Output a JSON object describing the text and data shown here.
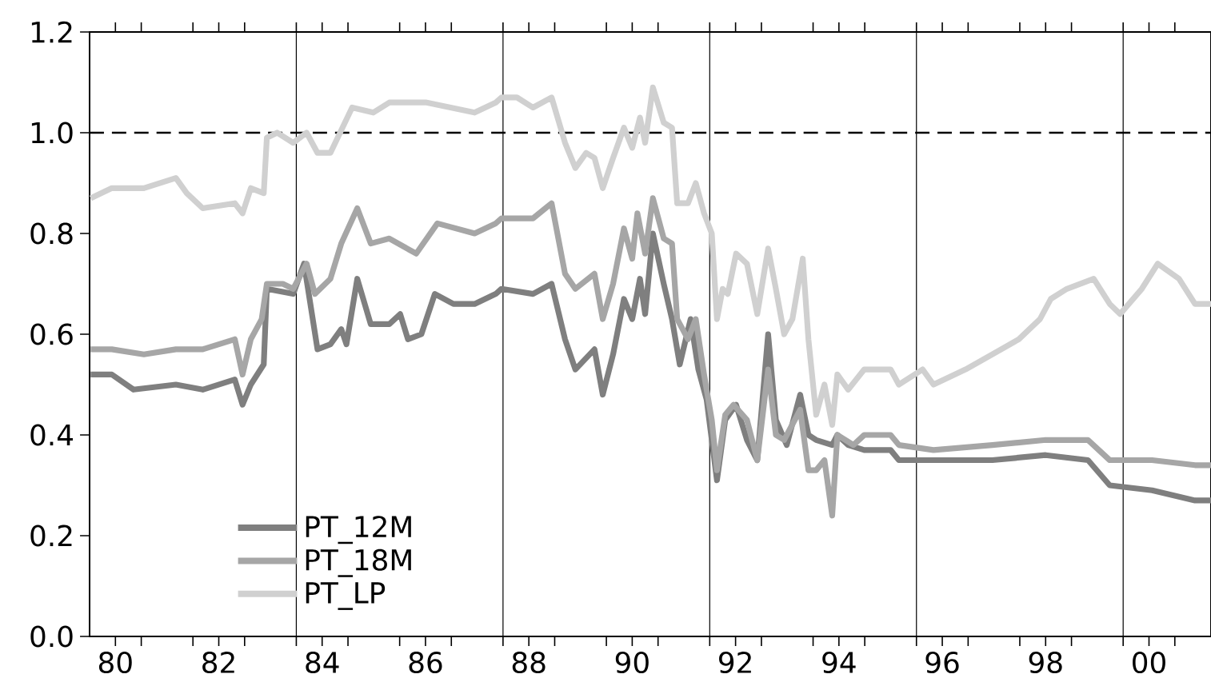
{
  "chart_data": {
    "type": "line",
    "xlim": [
      1979.5,
      2001.2
    ],
    "ylim": [
      0,
      1.2
    ],
    "xticks": [
      {
        "value": 1980,
        "label": "80"
      },
      {
        "value": 1980.5,
        "label": null
      },
      {
        "value": 1981.5,
        "label": null
      },
      {
        "value": 1982,
        "label": "82"
      },
      {
        "value": 1982.5,
        "label": null
      },
      {
        "value": 1983.5,
        "label": null
      },
      {
        "value": 1984,
        "label": "84"
      },
      {
        "value": 1984.5,
        "label": null
      },
      {
        "value": 1985.5,
        "label": null
      },
      {
        "value": 1986,
        "label": "86"
      },
      {
        "value": 1986.5,
        "label": null
      },
      {
        "value": 1987.5,
        "label": null
      },
      {
        "value": 1988,
        "label": "88"
      },
      {
        "value": 1988.5,
        "label": null
      },
      {
        "value": 1989.5,
        "label": null
      },
      {
        "value": 1990,
        "label": "90"
      },
      {
        "value": 1990.5,
        "label": null
      },
      {
        "value": 1991.5,
        "label": null
      },
      {
        "value": 1992,
        "label": "92"
      },
      {
        "value": 1992.5,
        "label": null
      },
      {
        "value": 1993.5,
        "label": null
      },
      {
        "value": 1994,
        "label": "94"
      },
      {
        "value": 1994.5,
        "label": null
      },
      {
        "value": 1995.5,
        "label": null
      },
      {
        "value": 1996,
        "label": "96"
      },
      {
        "value": 1996.5,
        "label": null
      },
      {
        "value": 1997.5,
        "label": null
      },
      {
        "value": 1998,
        "label": "98"
      },
      {
        "value": 1998.5,
        "label": null
      },
      {
        "value": 1999.5,
        "label": null
      },
      {
        "value": 2000,
        "label": "00"
      },
      {
        "value": 2000.5,
        "label": null
      }
    ],
    "yticks": [
      {
        "value": 0,
        "label": "0.0"
      },
      {
        "value": 0.2,
        "label": "0.2"
      },
      {
        "value": 0.4,
        "label": "0.4"
      },
      {
        "value": 0.6,
        "label": "0.6"
      },
      {
        "value": 0.8,
        "label": "0.8"
      },
      {
        "value": 1.0,
        "label": "1.0"
      },
      {
        "value": 1.2,
        "label": "1.2"
      }
    ],
    "legend": "bottom left",
    "marker": "none",
    "line_style": "solid",
    "ref_lines": [
      {
        "axis": "y",
        "value": 1.0,
        "color": "#000000",
        "line_style": "dashed"
      },
      {
        "axis": "x",
        "value": 1983.5,
        "color": "#000000",
        "line_style": "solid"
      },
      {
        "axis": "x",
        "value": 1987.5,
        "color": "#000000",
        "line_style": "solid"
      },
      {
        "axis": "x",
        "value": 1991.5,
        "color": "#000000",
        "line_style": "solid"
      },
      {
        "axis": "x",
        "value": 1995.5,
        "color": "#000000",
        "line_style": "solid"
      },
      {
        "axis": "x",
        "value": 1999.5,
        "color": "#000000",
        "line_style": "solid"
      }
    ],
    "series": [
      {
        "name": "PT_12M",
        "color": "#7f7f7f",
        "x": [
          1979.52,
          1979.93,
          1980.35,
          1981.17,
          1981.69,
          1982.31,
          1982.46,
          1982.62,
          1982.87,
          1982.93,
          1983.44,
          1983.65,
          1983.91,
          1984.16,
          1984.37,
          1984.47,
          1984.68,
          1984.94,
          1985.3,
          1985.51,
          1985.66,
          1985.92,
          1986.18,
          1986.54,
          1986.95,
          1987.36,
          1987.47,
          1988.08,
          1988.44,
          1988.7,
          1988.9,
          1989.27,
          1989.43,
          1989.63,
          1989.84,
          1990.0,
          1990.15,
          1990.25,
          1990.4,
          1990.61,
          1990.77,
          1990.92,
          1991.13,
          1991.28,
          1991.44,
          1991.64,
          1991.8,
          1992.01,
          1992.22,
          1992.42,
          1992.63,
          1992.78,
          1992.99,
          1993.25,
          1993.41,
          1993.56,
          1993.87,
          1993.97,
          1994.18,
          1994.49,
          1995.0,
          1995.16,
          1995.83,
          1996.97,
          1998.0,
          1998.82,
          1999.24,
          2000.06,
          2000.89,
          2001.2
        ],
        "values": [
          0.52,
          0.52,
          0.49,
          0.5,
          0.49,
          0.51,
          0.46,
          0.5,
          0.54,
          0.69,
          0.68,
          0.74,
          0.57,
          0.58,
          0.61,
          0.58,
          0.71,
          0.62,
          0.62,
          0.64,
          0.59,
          0.6,
          0.68,
          0.66,
          0.66,
          0.68,
          0.69,
          0.68,
          0.7,
          0.59,
          0.53,
          0.57,
          0.48,
          0.56,
          0.67,
          0.63,
          0.71,
          0.64,
          0.8,
          0.7,
          0.63,
          0.54,
          0.63,
          0.53,
          0.47,
          0.31,
          0.43,
          0.46,
          0.39,
          0.35,
          0.6,
          0.43,
          0.38,
          0.48,
          0.4,
          0.39,
          0.38,
          0.4,
          0.38,
          0.37,
          0.37,
          0.35,
          0.35,
          0.35,
          0.36,
          0.35,
          0.3,
          0.29,
          0.27,
          0.27
        ]
      },
      {
        "name": "PT_18M",
        "color": "#a6a6a6",
        "x": [
          1979.52,
          1979.93,
          1980.55,
          1981.17,
          1981.69,
          1982.31,
          1982.46,
          1982.62,
          1982.83,
          1982.93,
          1983.24,
          1983.44,
          1983.7,
          1983.86,
          1984.16,
          1984.37,
          1984.68,
          1984.94,
          1985.3,
          1985.82,
          1986.23,
          1986.95,
          1987.36,
          1987.47,
          1988.08,
          1988.44,
          1988.7,
          1988.9,
          1989.27,
          1989.43,
          1989.63,
          1989.84,
          1990.0,
          1990.1,
          1990.25,
          1990.4,
          1990.61,
          1990.77,
          1990.87,
          1991.08,
          1991.23,
          1991.39,
          1991.54,
          1991.64,
          1991.8,
          1991.96,
          1992.22,
          1992.42,
          1992.63,
          1992.78,
          1992.94,
          1993.25,
          1993.41,
          1993.56,
          1993.72,
          1993.87,
          1993.97,
          1994.28,
          1994.49,
          1995.0,
          1995.16,
          1995.83,
          1996.97,
          1998.0,
          1998.82,
          1999.24,
          2000.06,
          2000.89,
          2001.2
        ],
        "values": [
          0.57,
          0.57,
          0.56,
          0.57,
          0.57,
          0.59,
          0.52,
          0.59,
          0.63,
          0.7,
          0.7,
          0.69,
          0.74,
          0.68,
          0.71,
          0.78,
          0.85,
          0.78,
          0.79,
          0.76,
          0.82,
          0.8,
          0.82,
          0.83,
          0.83,
          0.86,
          0.72,
          0.69,
          0.72,
          0.63,
          0.7,
          0.81,
          0.75,
          0.84,
          0.76,
          0.87,
          0.79,
          0.78,
          0.63,
          0.59,
          0.63,
          0.52,
          0.43,
          0.33,
          0.44,
          0.46,
          0.43,
          0.35,
          0.53,
          0.4,
          0.39,
          0.45,
          0.33,
          0.33,
          0.35,
          0.24,
          0.4,
          0.38,
          0.4,
          0.4,
          0.38,
          0.37,
          0.38,
          0.39,
          0.39,
          0.35,
          0.35,
          0.34,
          0.34
        ]
      },
      {
        "name": "PT_LP",
        "color": "#d0d0d0",
        "x": [
          1979.52,
          1979.93,
          1980.55,
          1981.17,
          1981.38,
          1981.69,
          1982.31,
          1982.46,
          1982.62,
          1982.87,
          1982.93,
          1983.13,
          1983.44,
          1983.7,
          1983.91,
          1984.16,
          1984.58,
          1984.99,
          1985.3,
          1986.02,
          1986.95,
          1987.36,
          1987.47,
          1987.77,
          1988.08,
          1988.44,
          1988.7,
          1988.9,
          1989.11,
          1989.27,
          1989.43,
          1989.63,
          1989.84,
          1990.0,
          1990.15,
          1990.25,
          1990.4,
          1990.61,
          1990.77,
          1990.87,
          1991.08,
          1991.23,
          1991.39,
          1991.54,
          1991.64,
          1991.75,
          1991.85,
          1992.01,
          1992.22,
          1992.42,
          1992.63,
          1992.78,
          1992.94,
          1993.1,
          1993.3,
          1993.41,
          1993.56,
          1993.72,
          1993.87,
          1993.97,
          1994.18,
          1994.49,
          1995.0,
          1995.16,
          1995.62,
          1995.83,
          1996.45,
          1996.97,
          1997.48,
          1997.89,
          1998.1,
          1998.41,
          1998.93,
          1999.24,
          1999.44,
          1999.86,
          2000.17,
          2000.58,
          2000.89,
          2001.2
        ],
        "values": [
          0.87,
          0.89,
          0.89,
          0.91,
          0.88,
          0.85,
          0.86,
          0.84,
          0.89,
          0.88,
          0.99,
          1.0,
          0.98,
          1.0,
          0.96,
          0.96,
          1.05,
          1.04,
          1.06,
          1.06,
          1.04,
          1.06,
          1.07,
          1.07,
          1.05,
          1.07,
          0.98,
          0.93,
          0.96,
          0.95,
          0.89,
          0.95,
          1.01,
          0.97,
          1.03,
          0.98,
          1.09,
          1.02,
          1.01,
          0.86,
          0.86,
          0.9,
          0.84,
          0.8,
          0.63,
          0.69,
          0.68,
          0.76,
          0.74,
          0.64,
          0.77,
          0.69,
          0.6,
          0.63,
          0.75,
          0.59,
          0.44,
          0.5,
          0.42,
          0.52,
          0.49,
          0.53,
          0.53,
          0.5,
          0.53,
          0.5,
          0.53,
          0.56,
          0.59,
          0.63,
          0.67,
          0.69,
          0.71,
          0.66,
          0.64,
          0.69,
          0.74,
          0.71,
          0.66,
          0.66
        ]
      }
    ]
  }
}
